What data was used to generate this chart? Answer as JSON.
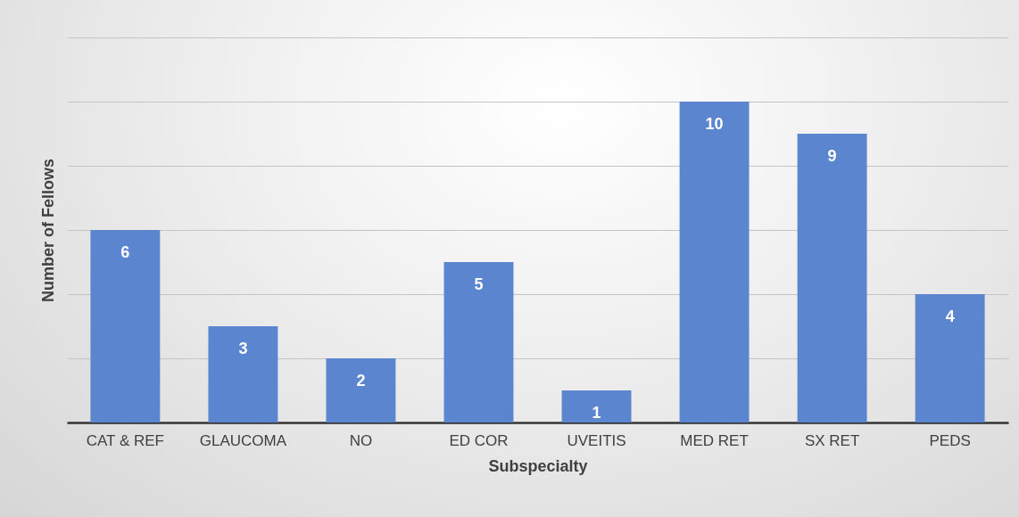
{
  "chart_data": {
    "type": "bar",
    "xlabel": "Subspecialty",
    "ylabel": "Number of Fellows",
    "categories": [
      "CAT & REF",
      "GLAUCOMA",
      "NO",
      "ED COR",
      "UVEITIS",
      "MED RET",
      "SX RET",
      "PEDS"
    ],
    "values": [
      6,
      3,
      2,
      5,
      1,
      10,
      9,
      4
    ],
    "color": "#5b86cf",
    "ylim": [
      0,
      12
    ],
    "yticks": [
      {
        "value": 0,
        "label": null
      },
      {
        "value": 2,
        "label": null
      },
      {
        "value": 4,
        "label": null
      },
      {
        "value": 6,
        "label": null
      },
      {
        "value": 8,
        "label": null
      },
      {
        "value": 10,
        "label": null
      },
      {
        "value": 12,
        "label": null
      }
    ],
    "grid": "y",
    "tick_labels": "x",
    "data_labels": true
  }
}
